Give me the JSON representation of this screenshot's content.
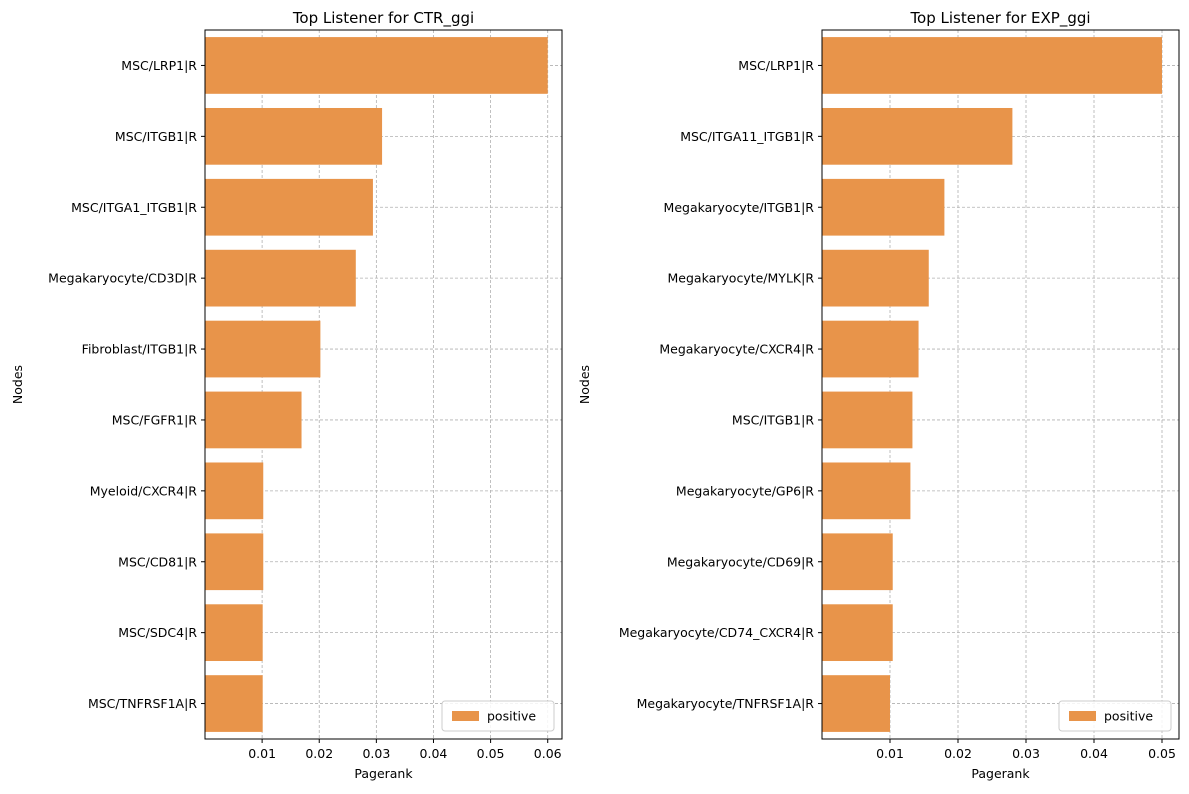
{
  "bar_color": "#e8944a",
  "chart_data": [
    {
      "type": "bar",
      "orientation": "horizontal",
      "title": "Top Listener for CTR_ggi",
      "xlabel": "Pagerank",
      "ylabel": "Nodes",
      "xlim": [
        0.0,
        0.0625
      ],
      "xticks": [
        0.01,
        0.02,
        0.03,
        0.04,
        0.05,
        0.06
      ],
      "xtick_labels": [
        "0.01",
        "0.02",
        "0.03",
        "0.04",
        "0.05",
        "0.06"
      ],
      "grid": true,
      "legend": {
        "position": "lower-right",
        "entries": [
          {
            "label": "positive",
            "color": "#e8944a"
          }
        ]
      },
      "categories": [
        "MSC/LRP1|R",
        "MSC/ITGB1|R",
        "MSC/ITGA1_ITGB1|R",
        "Megakaryocyte/CD3D|R",
        "Fibroblast/ITGB1|R",
        "MSC/FGFR1|R",
        "Myeloid/CXCR4|R",
        "MSC/CD81|R",
        "MSC/SDC4|R",
        "MSC/TNFRSF1A|R"
      ],
      "series": [
        {
          "name": "positive",
          "values": [
            0.06,
            0.031,
            0.0294,
            0.0264,
            0.0202,
            0.0169,
            0.0102,
            0.0102,
            0.0101,
            0.0101
          ]
        }
      ]
    },
    {
      "type": "bar",
      "orientation": "horizontal",
      "title": "Top Listener for EXP_ggi",
      "xlabel": "Pagerank",
      "ylabel": "Nodes",
      "xlim": [
        0.0,
        0.0525
      ],
      "xticks": [
        0.01,
        0.02,
        0.03,
        0.04,
        0.05
      ],
      "xtick_labels": [
        "0.01",
        "0.02",
        "0.03",
        "0.04",
        "0.05"
      ],
      "grid": true,
      "legend": {
        "position": "lower-right",
        "entries": [
          {
            "label": "positive",
            "color": "#e8944a"
          }
        ]
      },
      "categories": [
        "MSC/LRP1|R",
        "MSC/ITGA11_ITGB1|R",
        "Megakaryocyte/ITGB1|R",
        "Megakaryocyte/MYLK|R",
        "Megakaryocyte/CXCR4|R",
        "MSC/ITGB1|R",
        "Megakaryocyte/GP6|R",
        "Megakaryocyte/CD69|R",
        "Megakaryocyte/CD74_CXCR4|R",
        "Megakaryocyte/TNFRSF1A|R"
      ],
      "series": [
        {
          "name": "positive",
          "values": [
            0.05,
            0.028,
            0.018,
            0.0157,
            0.0142,
            0.0133,
            0.013,
            0.0104,
            0.0104,
            0.01
          ]
        }
      ]
    }
  ]
}
